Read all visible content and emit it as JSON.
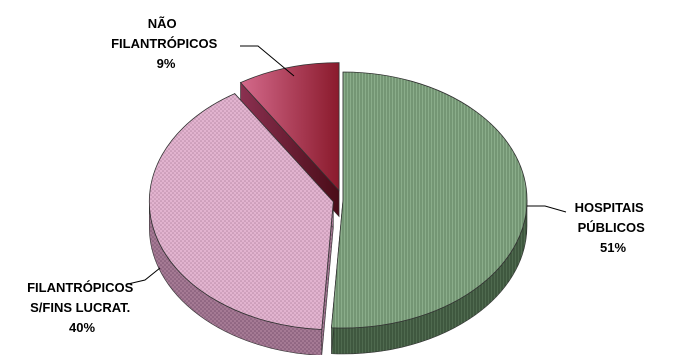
{
  "chart_data": {
    "type": "pie",
    "style": "3d-exploded",
    "title": "",
    "slices": [
      {
        "label_lines": [
          "HOSPITAIS",
          "PÚBLICOS"
        ],
        "pct_label": "51%",
        "value": 51,
        "color": "#7fa07f",
        "side": "#5c7a5c",
        "pattern": "vertical-lines"
      },
      {
        "label_lines": [
          "FILANTRÓPICOS",
          "S/FINS LUCRAT."
        ],
        "pct_label": "40%",
        "value": 40,
        "color": "#d9a6c4",
        "side": "#a87a96",
        "pattern": "dots"
      },
      {
        "label_lines": [
          "NÃO",
          "FILANTRÓPICOS"
        ],
        "pct_label": "9%",
        "value": 9,
        "color": "#c0506f",
        "side": "#7a2238",
        "pattern": "gradient"
      }
    ]
  }
}
